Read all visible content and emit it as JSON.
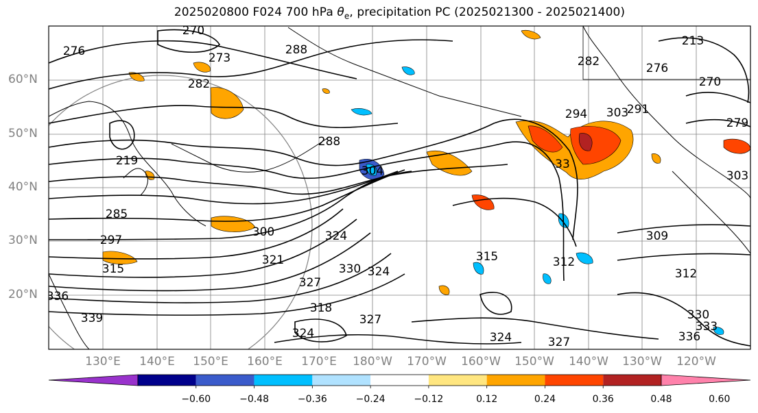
{
  "title": {
    "prefix": "2025020800 F024 700 hPa ",
    "theta": "θ",
    "sub": "e",
    "suffix": ", precipitation PC (2025021300 - 2025021400)"
  },
  "axes": {
    "lat_labels": [
      "60°N",
      "50°N",
      "40°N",
      "30°N",
      "20°N"
    ],
    "lon_labels": [
      "130°E",
      "140°E",
      "150°E",
      "160°E",
      "170°E",
      "180°W",
      "170°W",
      "160°W",
      "150°W",
      "140°W",
      "130°W",
      "120°W"
    ]
  },
  "contour_labels": [
    "270",
    "276",
    "273",
    "288",
    "282",
    "213",
    "276",
    "270",
    "282",
    "279",
    "294",
    "288",
    "303",
    "304",
    "219",
    "285",
    "297",
    "300",
    "324",
    "315",
    "321",
    "330",
    "324",
    "327",
    "318",
    "336",
    "339",
    "324",
    "327",
    "312",
    "315",
    "309",
    "312",
    "330",
    "333",
    "336",
    "324",
    "327",
    "33",
    "291",
    "303"
  ],
  "colorbar": {
    "colors": [
      "#9932CC",
      "#00008B",
      "#3A5BCB",
      "#00BFFF",
      "#B0E2FF",
      "#FFFFFF",
      "#FFE680",
      "#FFA500",
      "#FF4500",
      "#B22222",
      "#FF82AB"
    ],
    "labels": [
      "−0.60",
      "−0.48",
      "−0.36",
      "−0.24",
      "−0.12",
      "0.12",
      "0.24",
      "0.36",
      "0.48",
      "0.60"
    ]
  },
  "colors": {
    "map_frame": "#000000",
    "contour": "#000000",
    "gridline": "#808080",
    "coastline": "#000000"
  }
}
